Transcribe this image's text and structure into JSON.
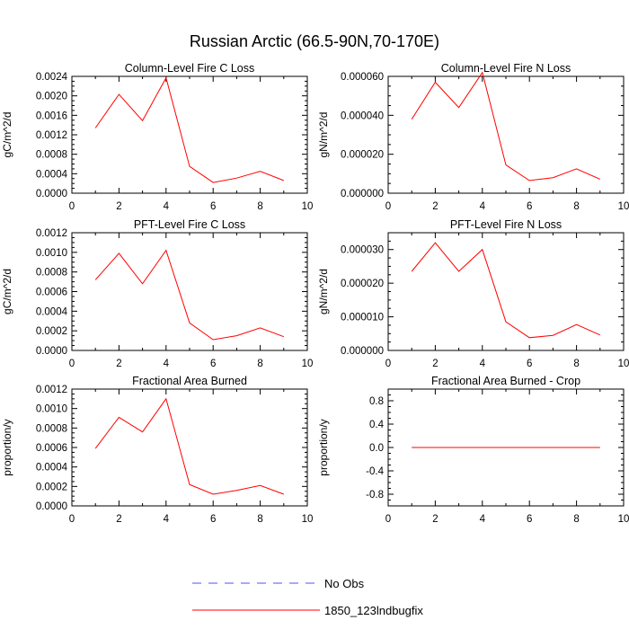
{
  "figure": {
    "title": "Russian Arctic (66.5-90N,70-170E)"
  },
  "legend": {
    "entries": [
      {
        "label": "No Obs",
        "color": "#5050ff",
        "style": "dashed"
      },
      {
        "label": "1850_123lndbugfix",
        "color": "#ff0000",
        "style": "solid"
      }
    ]
  },
  "chart_data": [
    {
      "type": "line",
      "title": "Column-Level Fire C Loss",
      "ylabel": "gC/m^2/d",
      "xlim": [
        0,
        10
      ],
      "xticks": [
        "0",
        "2",
        "4",
        "6",
        "8",
        "10"
      ],
      "ylim": [
        0,
        0.0024
      ],
      "yticks": [
        "0.0000",
        "0.0004",
        "0.0008",
        "0.0012",
        "0.0016",
        "0.0020",
        "0.0024"
      ],
      "series": [
        {
          "name": "1850_123lndbugfix",
          "x": [
            1,
            2,
            3,
            4,
            5,
            6,
            7,
            8,
            9
          ],
          "values": [
            0.00134,
            0.00203,
            0.00149,
            0.00237,
            0.00055,
            0.00022,
            0.00031,
            0.00045,
            0.00026
          ]
        }
      ]
    },
    {
      "type": "line",
      "title": "Column-Level Fire N Loss",
      "ylabel": "gN/m^2/d",
      "xlim": [
        0,
        10
      ],
      "xticks": [
        "0",
        "2",
        "4",
        "6",
        "8",
        "10"
      ],
      "ylim": [
        0,
        6e-05
      ],
      "yticks": [
        "0.000000",
        "0.000020",
        "0.000040",
        "0.000060"
      ],
      "series": [
        {
          "name": "1850_123lndbugfix",
          "x": [
            1,
            2,
            3,
            4,
            5,
            6,
            7,
            8,
            9
          ],
          "values": [
            3.8e-05,
            5.7e-05,
            4.4e-05,
            6.2e-05,
            1.45e-05,
            6.5e-06,
            8e-06,
            1.25e-05,
            7.2e-06
          ]
        }
      ]
    },
    {
      "type": "line",
      "title": "PFT-Level Fire C Loss",
      "ylabel": "gC/m^2/d",
      "xlim": [
        0,
        10
      ],
      "xticks": [
        "0",
        "2",
        "4",
        "6",
        "8",
        "10"
      ],
      "ylim": [
        0,
        0.0012
      ],
      "yticks": [
        "0.0000",
        "0.0002",
        "0.0004",
        "0.0006",
        "0.0008",
        "0.0010",
        "0.0012"
      ],
      "series": [
        {
          "name": "1850_123lndbugfix",
          "x": [
            1,
            2,
            3,
            4,
            5,
            6,
            7,
            8,
            9
          ],
          "values": [
            0.00072,
            0.00099,
            0.00068,
            0.00102,
            0.00028,
            0.00011,
            0.00015,
            0.00023,
            0.00014
          ]
        }
      ]
    },
    {
      "type": "line",
      "title": "PFT-Level Fire N Loss",
      "ylabel": "gN/m^2/d",
      "xlim": [
        0,
        10
      ],
      "xticks": [
        "0",
        "2",
        "4",
        "6",
        "8",
        "10"
      ],
      "ylim": [
        0,
        3.5e-05
      ],
      "yticks": [
        "0.000000",
        "0.000010",
        "0.000020",
        "0.000030"
      ],
      "series": [
        {
          "name": "1850_123lndbugfix",
          "x": [
            1,
            2,
            3,
            4,
            5,
            6,
            7,
            8,
            9
          ],
          "values": [
            2.35e-05,
            3.2e-05,
            2.35e-05,
            3e-05,
            8.5e-06,
            3.8e-06,
            4.5e-06,
            7.7e-06,
            4.6e-06
          ]
        }
      ]
    },
    {
      "type": "line",
      "title": "Fractional Area Burned",
      "ylabel": "proportion/y",
      "xlim": [
        0,
        10
      ],
      "xticks": [
        "0",
        "2",
        "4",
        "6",
        "8",
        "10"
      ],
      "ylim": [
        0,
        0.0012
      ],
      "yticks": [
        "0.0000",
        "0.0002",
        "0.0004",
        "0.0006",
        "0.0008",
        "0.0010",
        "0.0012"
      ],
      "series": [
        {
          "name": "1850_123lndbugfix",
          "x": [
            1,
            2,
            3,
            4,
            5,
            6,
            7,
            8,
            9
          ],
          "values": [
            0.00059,
            0.00091,
            0.00076,
            0.0011,
            0.00022,
            0.00012,
            0.00016,
            0.00021,
            0.00012
          ]
        }
      ]
    },
    {
      "type": "line",
      "title": "Fractional Area Burned - Crop",
      "ylabel": "proportion/y",
      "xlim": [
        0,
        10
      ],
      "xticks": [
        "0",
        "2",
        "4",
        "6",
        "8",
        "10"
      ],
      "ylim": [
        -1,
        1
      ],
      "yticks": [
        "-0.8",
        "-0.4",
        "0.0",
        "0.4",
        "0.8"
      ],
      "ytick_values": [
        -0.8,
        -0.4,
        0,
        0.4,
        0.8
      ],
      "series": [
        {
          "name": "1850_123lndbugfix",
          "x": [
            1,
            2,
            3,
            4,
            5,
            6,
            7,
            8,
            9
          ],
          "values": [
            0,
            0,
            0,
            0,
            0,
            0,
            0,
            0,
            0
          ]
        }
      ]
    }
  ]
}
